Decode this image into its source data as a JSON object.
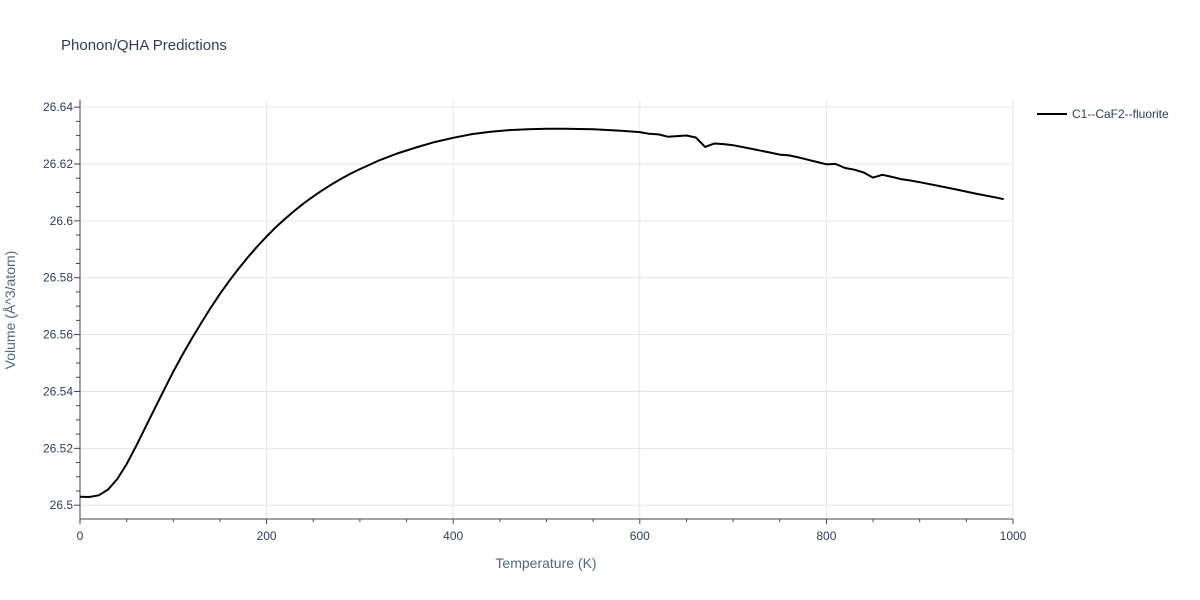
{
  "chart_data": {
    "type": "line",
    "title": "Phonon/QHA Predictions",
    "xlabel": "Temperature (K)",
    "ylabel": "Volume (Å^3/atom)",
    "xlim": [
      0,
      1000
    ],
    "ylim": [
      26.4955,
      26.6425
    ],
    "x_ticks": [
      0,
      200,
      400,
      600,
      800,
      1000
    ],
    "x_tick_labels": [
      "0",
      "200",
      "400",
      "600",
      "800",
      "1000"
    ],
    "y_ticks": [
      26.5,
      26.52,
      26.54,
      26.56,
      26.58,
      26.6,
      26.62,
      26.64
    ],
    "y_tick_labels": [
      "26.5",
      "26.52",
      "26.54",
      "26.56",
      "26.58",
      "26.6",
      "26.62",
      "26.64"
    ],
    "grid": true,
    "legend_position": "top-right",
    "series": [
      {
        "name": "C1--CaF2--fluorite",
        "color": "#000000",
        "x": [
          0,
          10,
          20,
          30,
          40,
          50,
          60,
          70,
          80,
          90,
          100,
          110,
          120,
          130,
          140,
          150,
          160,
          170,
          180,
          190,
          200,
          210,
          220,
          230,
          240,
          250,
          260,
          270,
          280,
          290,
          300,
          320,
          340,
          360,
          380,
          400,
          420,
          440,
          460,
          480,
          500,
          520,
          550,
          580,
          600,
          610,
          620,
          630,
          640,
          650,
          660,
          670,
          680,
          690,
          700,
          720,
          740,
          750,
          760,
          770,
          780,
          790,
          800,
          810,
          820,
          830,
          840,
          850,
          860,
          870,
          880,
          890,
          900,
          920,
          940,
          960,
          980,
          990
        ],
        "y": [
          26.503,
          26.5029,
          26.5035,
          26.5055,
          26.5092,
          26.5145,
          26.5207,
          26.5273,
          26.5339,
          26.5405,
          26.547,
          26.553,
          26.5587,
          26.5641,
          26.5694,
          26.5743,
          26.5789,
          26.5832,
          26.5872,
          26.591,
          26.5945,
          26.5978,
          26.6008,
          26.6036,
          26.6062,
          26.6086,
          26.6108,
          26.6129,
          26.6148,
          26.6166,
          26.6182,
          26.6212,
          26.6237,
          26.6258,
          26.6277,
          26.6292,
          26.6305,
          26.6313,
          26.6319,
          26.6322,
          26.6324,
          26.6324,
          26.6322,
          26.6317,
          26.6312,
          26.6306,
          26.6304,
          26.6296,
          26.6298,
          26.63,
          26.6293,
          26.626,
          26.6272,
          26.627,
          26.6266,
          26.6253,
          26.624,
          26.6233,
          26.623,
          26.6223,
          26.6215,
          26.6207,
          26.6199,
          26.62,
          26.6186,
          26.618,
          26.617,
          26.6152,
          26.6162,
          26.6155,
          26.6147,
          26.6142,
          26.6136,
          26.6123,
          26.611,
          26.6096,
          26.6083,
          26.6076
        ]
      }
    ]
  }
}
